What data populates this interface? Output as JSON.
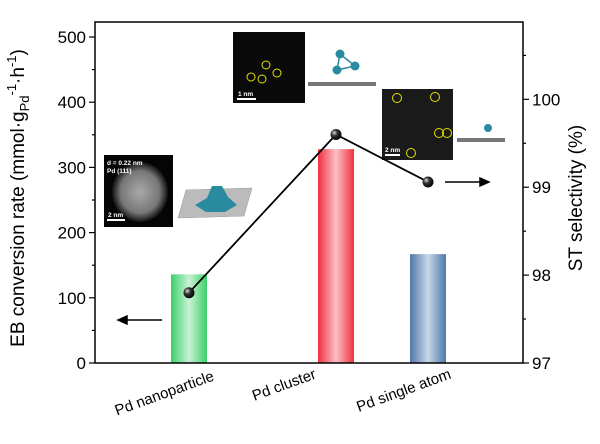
{
  "chart_data": {
    "type": "bar+line",
    "categories": [
      "Pd nanoparticle",
      "Pd cluster",
      "Pd single atom"
    ],
    "bar_series": {
      "axis": "left",
      "values": [
        136,
        328,
        167
      ],
      "colors": [
        "#3ccf6a",
        "#f0303f",
        "#4f78a8"
      ]
    },
    "line_series": {
      "axis": "right",
      "values": [
        97.8,
        99.6,
        99.06
      ],
      "color": "#000000"
    },
    "ylabel_left": "EB conversion rate (mmol·g",
    "ylabel_left_sub": "Pd",
    "ylabel_left_sup1": "-1",
    "ylabel_left_mid": "·h",
    "ylabel_left_sup2": "-1",
    "ylabel_left_end": ")",
    "ylabel_right": "ST selectivity (%)",
    "ylim_left": [
      0,
      523
    ],
    "ylim_right": [
      97,
      100.88
    ],
    "yticks_left": [
      "0",
      "100",
      "200",
      "300",
      "400",
      "500"
    ],
    "yticks_right": [
      "97",
      "98",
      "99",
      "100"
    ],
    "grid": false,
    "arrows": {
      "nanoparticle": "points-left",
      "single_atom": "points-right"
    },
    "insets": {
      "nanoparticle_label1": "d = 0.22 nm",
      "nanoparticle_label2": "Pd (111)",
      "nanoparticle_scale": "2 nm",
      "cluster_scale": "1 nm",
      "single_atom_scale": "2 nm"
    }
  }
}
